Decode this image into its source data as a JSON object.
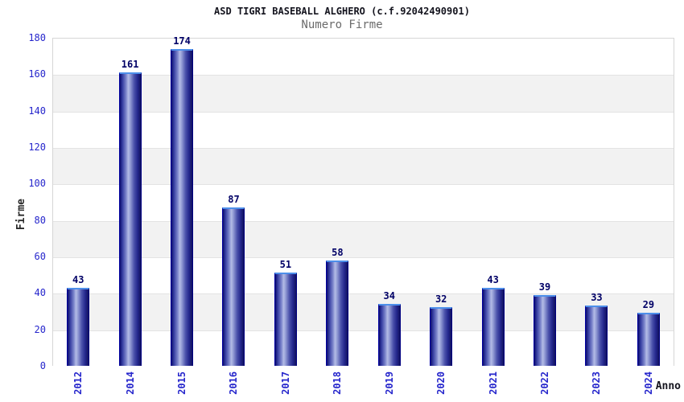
{
  "chart_data": {
    "type": "bar",
    "title": "ASD TIGRI BASEBALL ALGHERO (c.f.92042490901)",
    "subtitle": "Numero Firme",
    "xlabel": "Anno",
    "ylabel": "Firme",
    "categories": [
      "2012",
      "2014",
      "2015",
      "2016",
      "2017",
      "2018",
      "2019",
      "2020",
      "2021",
      "2022",
      "2023",
      "2024"
    ],
    "values": [
      43,
      161,
      174,
      87,
      51,
      58,
      34,
      32,
      43,
      39,
      33,
      29
    ],
    "ylim": [
      0,
      180
    ],
    "ytick_step": 20,
    "yticks": [
      0,
      20,
      40,
      60,
      80,
      100,
      120,
      140,
      160,
      180
    ],
    "grid": "horizontal gridlines with alternating shaded bands",
    "legend": "none",
    "bar_labels_shown": true,
    "colors": {
      "tick_label": "#2626cc",
      "bar_value_label": "#000066",
      "title": "#14141e",
      "subtitle": "#6b6b6b",
      "bar_dark": "#23268c",
      "bar_highlight": "#b3bbe6",
      "bar_border": "#0000a0",
      "bar_top_cap": "#4d8fea",
      "band_shade": "#f2f2f2",
      "gridline": "#e3e3e3",
      "plot_border": "#d6d6d6"
    }
  }
}
